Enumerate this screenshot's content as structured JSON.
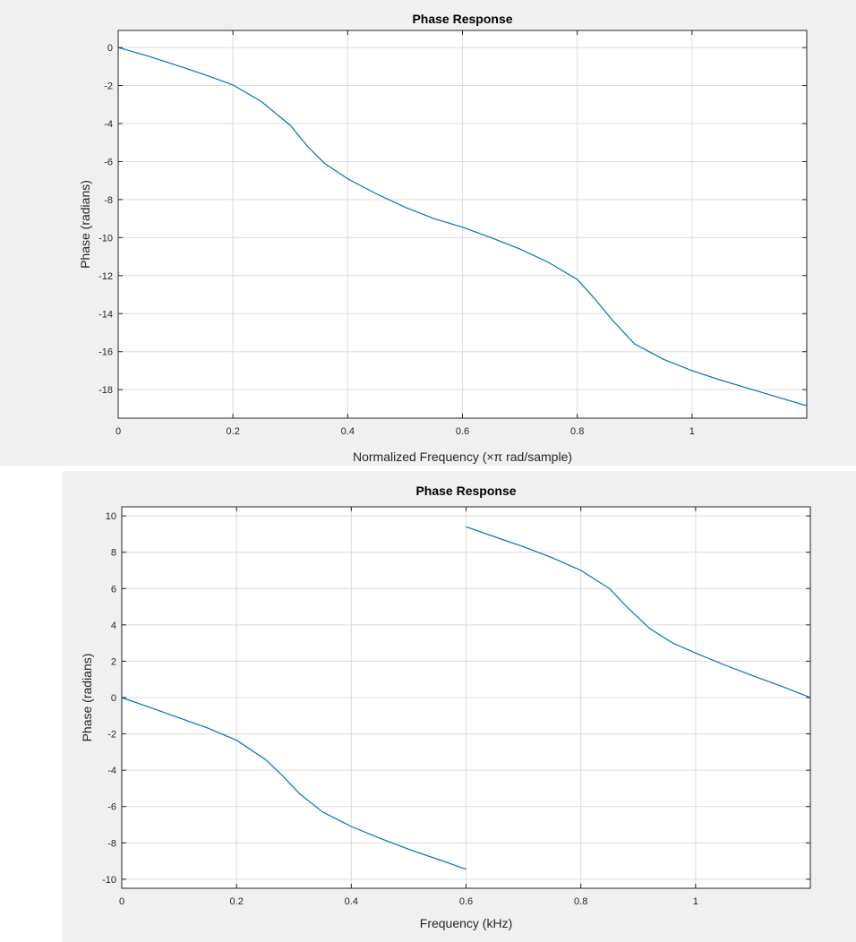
{
  "chart_data": [
    {
      "type": "line",
      "title": "Phase Response",
      "xlabel": "Normalized Frequency (×π rad/sample)",
      "ylabel": "Phase (radians)",
      "xlim": [
        0,
        1.2
      ],
      "ylim": [
        -19.5,
        0.9
      ],
      "xticks": [
        0,
        0.2,
        0.4,
        0.6,
        0.8,
        1
      ],
      "xtick_labels": [
        "0",
        "0.2",
        "0.4",
        "0.6",
        "0.8",
        "1"
      ],
      "yticks": [
        0,
        -2,
        -4,
        -6,
        -8,
        -10,
        -12,
        -14,
        -16,
        -18
      ],
      "ytick_labels": [
        "0",
        "-2",
        "-4",
        "-6",
        "-8",
        "-10",
        "-12",
        "-14",
        "-16",
        "-18"
      ],
      "grid": true,
      "color": "#0072bd",
      "series": [
        {
          "segments": [
            {
              "x": [
                0,
                0.05,
                0.1,
                0.15,
                0.2,
                0.25,
                0.3,
                0.33,
                0.36,
                0.4,
                0.45,
                0.5,
                0.55,
                0.6
              ],
              "y": [
                0,
                -0.43,
                -0.92,
                -1.42,
                -1.97,
                -2.85,
                -4.1,
                -5.2,
                -6.1,
                -6.9,
                -7.7,
                -8.4,
                -9.0,
                -9.45
              ]
            },
            {
              "x": [
                0.6,
                0.65,
                0.7,
                0.75,
                0.8,
                0.83,
                0.86,
                0.9,
                0.95,
                1.0,
                1.05,
                1.1,
                1.15,
                1.2
              ],
              "y": [
                -9.45,
                -10.0,
                -10.6,
                -11.3,
                -12.2,
                -13.2,
                -14.3,
                -15.6,
                -16.4,
                -17.0,
                -17.5,
                -17.95,
                -18.4,
                -18.85
              ]
            }
          ]
        }
      ]
    },
    {
      "type": "line",
      "title": "Phase Response",
      "xlabel": "Frequency (kHz)",
      "ylabel": "Phase (radians)",
      "xlim": [
        0,
        1.2
      ],
      "ylim": [
        -10.5,
        10.5
      ],
      "xticks": [
        0,
        0.2,
        0.4,
        0.6,
        0.8,
        1
      ],
      "xtick_labels": [
        "0",
        "0.2",
        "0.4",
        "0.6",
        "0.8",
        "1"
      ],
      "yticks": [
        10,
        8,
        6,
        4,
        2,
        0,
        -2,
        -4,
        -6,
        -8,
        -10
      ],
      "ytick_labels": [
        "10",
        "8",
        "6",
        "4",
        "2",
        "0",
        "-2",
        "-4",
        "-6",
        "-8",
        "-10"
      ],
      "grid": true,
      "color": "#0072bd",
      "series": [
        {
          "segments": [
            {
              "x": [
                0,
                0.05,
                0.1,
                0.15,
                0.2,
                0.25,
                0.28,
                0.31,
                0.35,
                0.4,
                0.45,
                0.5,
                0.55,
                0.6
              ],
              "y": [
                0,
                -0.55,
                -1.12,
                -1.68,
                -2.35,
                -3.4,
                -4.3,
                -5.3,
                -6.3,
                -7.1,
                -7.75,
                -8.35,
                -8.9,
                -9.45
              ]
            },
            {
              "x": [
                0.6,
                0.65,
                0.7,
                0.75,
                0.8,
                0.85,
                0.88,
                0.92,
                0.96,
                1.0,
                1.05,
                1.1,
                1.15,
                1.2
              ],
              "y": [
                9.4,
                8.85,
                8.3,
                7.7,
                7.0,
                6.0,
                5.0,
                3.8,
                3.0,
                2.45,
                1.8,
                1.2,
                0.62,
                0.0
              ]
            }
          ]
        }
      ]
    }
  ]
}
